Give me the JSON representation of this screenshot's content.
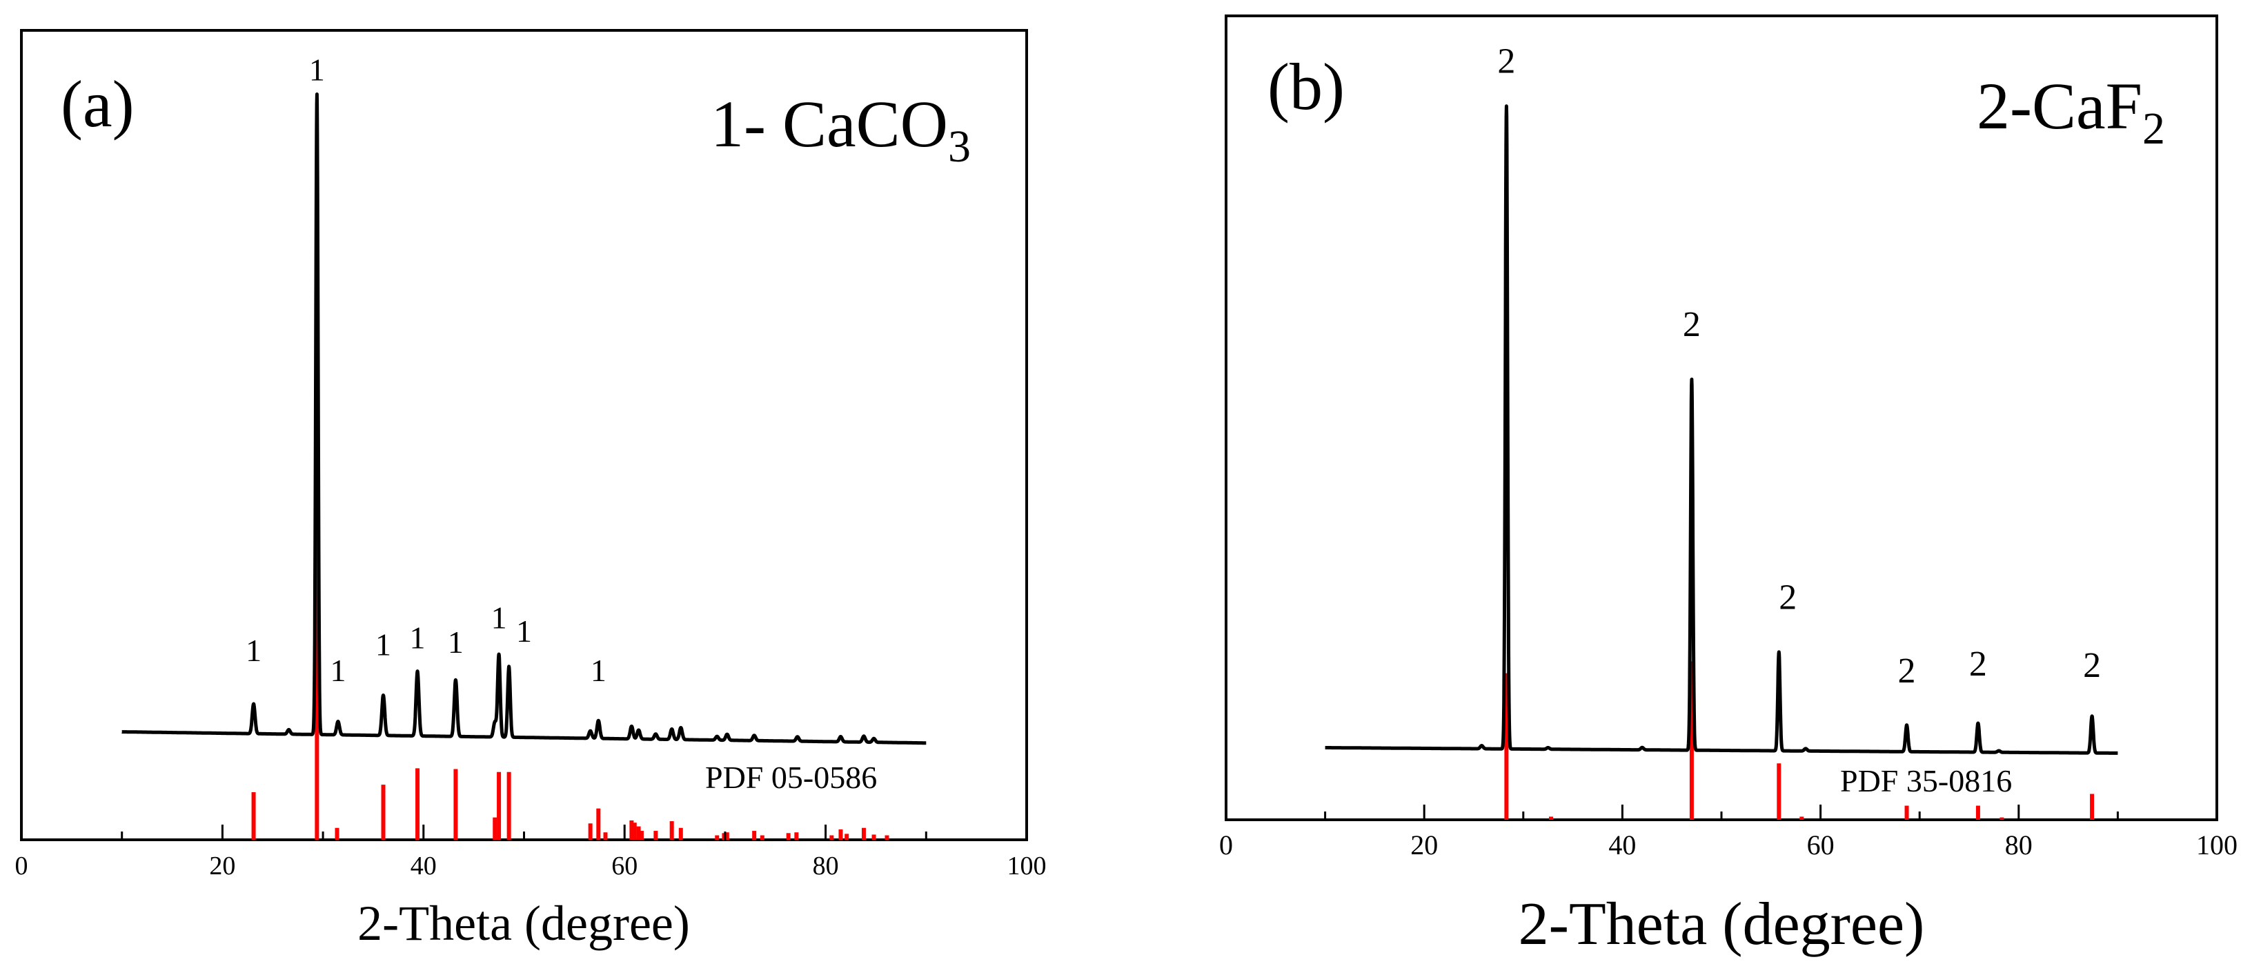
{
  "chart_data": [
    {
      "type": "line",
      "panel_label": "(a)",
      "title_prefix": "1- CaCO",
      "title_sub": "3",
      "xlabel": "2-Theta (degree)",
      "xlim": [
        0,
        100
      ],
      "xticks": [
        0,
        20,
        40,
        60,
        80,
        100
      ],
      "xtick_labels": [
        "0",
        "20",
        "40",
        "60",
        "80",
        "100"
      ],
      "minor_xticks": [
        10,
        30,
        50,
        70,
        90
      ],
      "ylim": [
        0,
        100
      ],
      "reference_label": "PDF 05-0586",
      "pattern": {
        "x_start": 10,
        "x_end": 90,
        "baseline_start": 14.5,
        "baseline_end": 13.0,
        "peaks": [
          {
            "x": 23.1,
            "h": 4.0,
            "w": 0.2
          },
          {
            "x": 26.6,
            "h": 0.6,
            "w": 0.2
          },
          {
            "x": 29.4,
            "h": 86.0,
            "w": 0.16
          },
          {
            "x": 31.5,
            "h": 1.8,
            "w": 0.2
          },
          {
            "x": 36.0,
            "h": 5.4,
            "w": 0.2
          },
          {
            "x": 39.4,
            "h": 8.7,
            "w": 0.2
          },
          {
            "x": 43.2,
            "h": 7.6,
            "w": 0.2
          },
          {
            "x": 47.1,
            "h": 2.0,
            "w": 0.2
          },
          {
            "x": 47.5,
            "h": 11.1,
            "w": 0.18
          },
          {
            "x": 48.5,
            "h": 9.5,
            "w": 0.18
          },
          {
            "x": 56.6,
            "h": 1.0,
            "w": 0.2
          },
          {
            "x": 57.4,
            "h": 2.4,
            "w": 0.2
          },
          {
            "x": 60.7,
            "h": 1.7,
            "w": 0.2
          },
          {
            "x": 61.4,
            "h": 1.2,
            "w": 0.2
          },
          {
            "x": 63.1,
            "h": 0.7,
            "w": 0.2
          },
          {
            "x": 64.7,
            "h": 1.4,
            "w": 0.2
          },
          {
            "x": 65.6,
            "h": 1.6,
            "w": 0.2
          },
          {
            "x": 69.2,
            "h": 0.5,
            "w": 0.2
          },
          {
            "x": 70.2,
            "h": 0.8,
            "w": 0.2
          },
          {
            "x": 72.9,
            "h": 0.7,
            "w": 0.2
          },
          {
            "x": 77.2,
            "h": 0.6,
            "w": 0.2
          },
          {
            "x": 81.5,
            "h": 0.7,
            "w": 0.2
          },
          {
            "x": 83.8,
            "h": 0.8,
            "w": 0.2
          },
          {
            "x": 84.8,
            "h": 0.5,
            "w": 0.2
          }
        ]
      },
      "reference_sticks": [
        {
          "x": 23.1,
          "h": 6.4
        },
        {
          "x": 29.4,
          "h": 54.0
        },
        {
          "x": 31.4,
          "h": 1.6
        },
        {
          "x": 36.0,
          "h": 7.4
        },
        {
          "x": 39.4,
          "h": 9.6
        },
        {
          "x": 43.2,
          "h": 9.5
        },
        {
          "x": 47.1,
          "h": 3.0
        },
        {
          "x": 47.5,
          "h": 9.1
        },
        {
          "x": 48.5,
          "h": 9.1
        },
        {
          "x": 56.6,
          "h": 2.2
        },
        {
          "x": 57.4,
          "h": 4.2
        },
        {
          "x": 58.1,
          "h": 1.0
        },
        {
          "x": 60.7,
          "h": 2.6
        },
        {
          "x": 61.0,
          "h": 2.3
        },
        {
          "x": 61.4,
          "h": 1.8
        },
        {
          "x": 61.7,
          "h": 1.2
        },
        {
          "x": 63.1,
          "h": 1.2
        },
        {
          "x": 64.7,
          "h": 2.5
        },
        {
          "x": 65.6,
          "h": 1.6
        },
        {
          "x": 69.2,
          "h": 0.6
        },
        {
          "x": 69.9,
          "h": 0.9
        },
        {
          "x": 70.2,
          "h": 1.0
        },
        {
          "x": 72.9,
          "h": 1.2
        },
        {
          "x": 73.7,
          "h": 0.6
        },
        {
          "x": 76.3,
          "h": 0.9
        },
        {
          "x": 77.1,
          "h": 1.0
        },
        {
          "x": 80.6,
          "h": 0.6
        },
        {
          "x": 81.5,
          "h": 1.4
        },
        {
          "x": 82.1,
          "h": 0.8
        },
        {
          "x": 83.8,
          "h": 1.6
        },
        {
          "x": 84.8,
          "h": 0.7
        },
        {
          "x": 86.1,
          "h": 0.6
        }
      ],
      "peak_markers": [
        {
          "x": 23.1,
          "y": 24.0,
          "text": "1"
        },
        {
          "x": 29.4,
          "y": 102.0,
          "text": "1"
        },
        {
          "x": 31.5,
          "y": 21.3,
          "text": "1"
        },
        {
          "x": 36.0,
          "y": 24.8,
          "text": "1"
        },
        {
          "x": 39.4,
          "y": 25.7,
          "text": "1"
        },
        {
          "x": 43.2,
          "y": 25.1,
          "text": "1"
        },
        {
          "x": 47.5,
          "y": 28.4,
          "text": "1"
        },
        {
          "x": 50.0,
          "y": 26.6,
          "text": "1"
        },
        {
          "x": 57.4,
          "y": 21.3,
          "text": "1"
        }
      ]
    },
    {
      "type": "line",
      "panel_label": "(b)",
      "title_prefix": "2-CaF",
      "title_sub": "2",
      "xlabel": "2-Theta (degree)",
      "xlim": [
        0,
        100
      ],
      "xticks": [
        0,
        20,
        40,
        60,
        80,
        100
      ],
      "xtick_labels": [
        "0",
        "20",
        "40",
        "60",
        "80",
        "100"
      ],
      "minor_xticks": [
        10,
        30,
        50,
        70,
        90
      ],
      "ylim": [
        0,
        100
      ],
      "reference_label": "PDF 35-0816",
      "pattern": {
        "x_start": 10,
        "x_end": 90,
        "baseline_start": 9.2,
        "baseline_end": 8.5,
        "peaks": [
          {
            "x": 25.8,
            "h": 0.4,
            "w": 0.2
          },
          {
            "x": 28.3,
            "h": 82.0,
            "w": 0.16
          },
          {
            "x": 32.5,
            "h": 0.2,
            "w": 0.2
          },
          {
            "x": 42.0,
            "h": 0.3,
            "w": 0.2
          },
          {
            "x": 47.0,
            "h": 47.3,
            "w": 0.16
          },
          {
            "x": 55.8,
            "h": 12.6,
            "w": 0.16
          },
          {
            "x": 58.5,
            "h": 0.3,
            "w": 0.2
          },
          {
            "x": 68.7,
            "h": 3.4,
            "w": 0.18
          },
          {
            "x": 75.9,
            "h": 3.7,
            "w": 0.18
          },
          {
            "x": 78.0,
            "h": 0.2,
            "w": 0.2
          },
          {
            "x": 87.4,
            "h": 4.7,
            "w": 0.18
          }
        ]
      },
      "reference_sticks": [
        {
          "x": 28.3,
          "h": 18.7
        },
        {
          "x": 32.8,
          "h": 0.4
        },
        {
          "x": 47.0,
          "h": 20.2
        },
        {
          "x": 55.8,
          "h": 7.2
        },
        {
          "x": 58.1,
          "h": 0.4
        },
        {
          "x": 68.7,
          "h": 1.8
        },
        {
          "x": 75.9,
          "h": 1.8
        },
        {
          "x": 78.3,
          "h": 0.3
        },
        {
          "x": 87.4,
          "h": 3.3
        }
      ],
      "peak_markers": [
        {
          "x": 28.3,
          "y": 95.3,
          "text": "2"
        },
        {
          "x": 47.0,
          "y": 61.7,
          "text": "2"
        },
        {
          "x": 56.7,
          "y": 26.9,
          "text": "2"
        },
        {
          "x": 68.7,
          "y": 17.5,
          "text": "2"
        },
        {
          "x": 75.9,
          "y": 18.4,
          "text": "2"
        },
        {
          "x": 87.4,
          "y": 18.2,
          "text": "2"
        }
      ]
    }
  ]
}
